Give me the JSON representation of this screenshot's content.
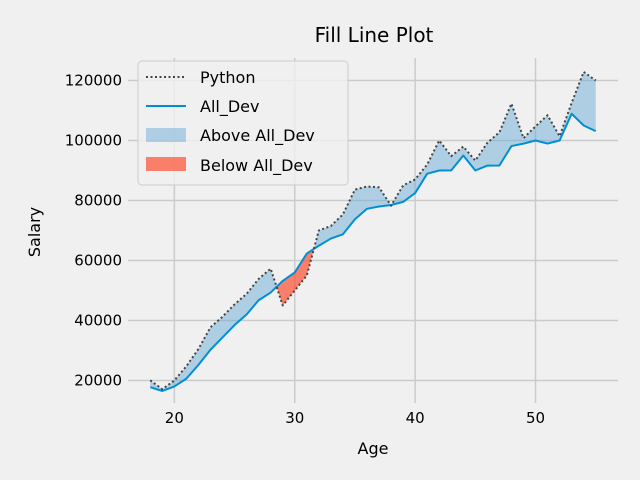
{
  "chart_data": {
    "type": "line",
    "title": "Fill Line Plot",
    "xlabel": "Age",
    "ylabel": "Salary",
    "xlim": [
      16.15,
      56.85
    ],
    "ylim": [
      12500,
      127500
    ],
    "x_ticks": [
      20,
      30,
      40,
      50
    ],
    "y_ticks": [
      20000,
      40000,
      60000,
      80000,
      100000,
      120000
    ],
    "x_tick_labels": [
      "20",
      "30",
      "40",
      "50"
    ],
    "y_tick_labels": [
      "20000",
      "40000",
      "60000",
      "80000",
      "100000",
      "120000"
    ],
    "grid": true,
    "legend_position": "upper-left",
    "x": [
      18,
      19,
      20,
      21,
      22,
      23,
      24,
      25,
      26,
      27,
      28,
      29,
      30,
      31,
      32,
      33,
      34,
      35,
      36,
      37,
      38,
      39,
      40,
      41,
      42,
      43,
      44,
      45,
      46,
      47,
      48,
      49,
      50,
      51,
      52,
      53,
      54,
      55
    ],
    "series": [
      {
        "name": "Python",
        "style": "dotted",
        "color": "#444444",
        "values": [
          20046,
          17100,
          20000,
          24744,
          30500,
          37732,
          41247,
          45372,
          48876,
          53850,
          57287,
          45000,
          50000,
          55000,
          70000,
          71496,
          75370,
          83640,
          84666,
          84392,
          78254,
          85000,
          87038,
          91991,
          100000,
          94796,
          97962,
          93302,
          99240,
          102736,
          112285,
          100771,
          104708,
          108423,
          101407,
          112542,
          122870,
          120000
        ]
      },
      {
        "name": "All_Dev",
        "style": "solid",
        "color": "#008fd5",
        "values": [
          17784,
          16500,
          18012,
          20628,
          25206,
          30252,
          34368,
          38496,
          42000,
          46752,
          49320,
          53200,
          56000,
          62316,
          64928,
          67317,
          68748,
          73752,
          77232,
          78000,
          78508,
          79536,
          82488,
          88935,
          90000,
          90056,
          95000,
          90000,
          91633,
          91660,
          98150,
          98964,
          100000,
          98988,
          100000,
          108923,
          105000,
          103117
        ]
      }
    ],
    "fills": [
      {
        "name": "Above All_Dev",
        "color": "#6baed6",
        "alpha": 0.5,
        "condition": "Python > All_Dev"
      },
      {
        "name": "Below All_Dev",
        "color": "#fc4f30",
        "alpha": 0.7,
        "condition": "Python <= All_Dev"
      }
    ],
    "colors": {
      "background": "#f0f0f0",
      "grid": "#cbcbcb",
      "all_dev": "#008fd5",
      "python": "#444444",
      "above_fill": "#6baed6",
      "below_fill": "#fc4f30"
    }
  }
}
